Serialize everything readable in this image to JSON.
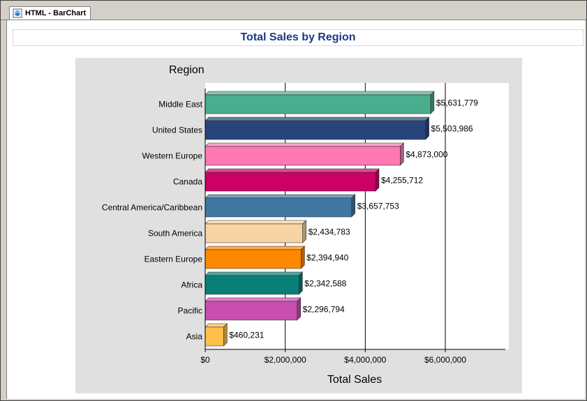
{
  "tab": {
    "label": "HTML - BarChart",
    "icon": "browser-page-icon"
  },
  "header": {
    "title": "Total Sales by Region"
  },
  "chart_data": {
    "type": "bar",
    "orientation": "horizontal",
    "title": "Total Sales by Region",
    "category_axis_label": "Region",
    "value_axis_label": "Total Sales",
    "categories": [
      "Middle East",
      "United States",
      "Western Europe",
      "Canada",
      "Central America/Caribbean",
      "South America",
      "Eastern Europe",
      "Africa",
      "Pacific",
      "Asia"
    ],
    "values": [
      5631779,
      5503986,
      4873000,
      4255712,
      3657753,
      2434783,
      2394940,
      2342588,
      2296794,
      460231
    ],
    "value_labels": [
      "$5,631,779",
      "$5,503,986",
      "$4,873,000",
      "$4,255,712",
      "$3,657,753",
      "$2,434,783",
      "$2,394,940",
      "$2,342,588",
      "$2,296,794",
      "$460,231"
    ],
    "bar_colors": [
      "#4aae8e",
      "#27457a",
      "#ff78b4",
      "#cc0066",
      "#3f77a0",
      "#f8d4a4",
      "#ff8800",
      "#0a7f78",
      "#c84fb0",
      "#ffbf4a"
    ],
    "xlim": [
      0,
      7500000
    ],
    "x_ticks": [
      0,
      2000000,
      4000000,
      6000000
    ],
    "x_tick_labels": [
      "$0",
      "$2,000,000",
      "$4,000,000",
      "$6,000,000"
    ],
    "grid": true,
    "legend": "none",
    "style": "3d-bars"
  }
}
